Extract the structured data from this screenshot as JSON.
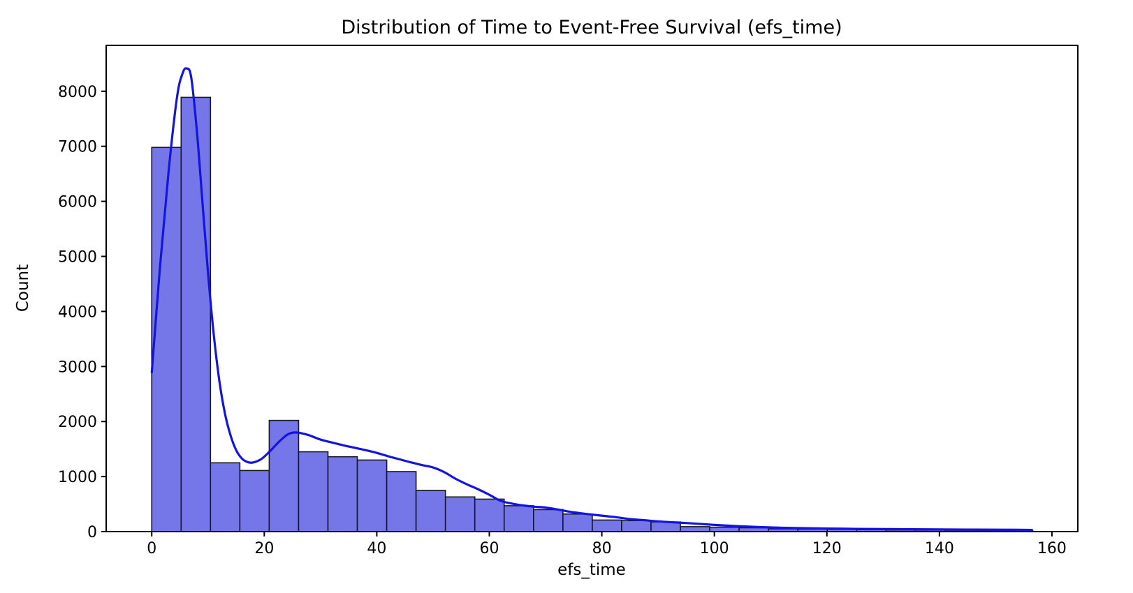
{
  "chart_data": {
    "type": "bar",
    "subtype": "histogram_with_kde",
    "title": "Distribution of Time to Event-Free Survival (efs_time)",
    "xlabel": "efs_time",
    "ylabel": "Count",
    "grid": false,
    "legend": null,
    "xlim": [
      -8.1,
      164.6
    ],
    "ylim": [
      0,
      8834
    ],
    "x_ticks": [
      0,
      20,
      40,
      60,
      80,
      100,
      120,
      140,
      160
    ],
    "y_ticks": [
      0,
      1000,
      2000,
      3000,
      4000,
      5000,
      6000,
      7000,
      8000
    ],
    "bin_start": 0,
    "bin_width": 5.22,
    "n_bins": 30,
    "data_range": [
      0,
      156.6
    ],
    "bar_counts": [
      6980,
      7890,
      1250,
      1110,
      2020,
      1450,
      1360,
      1300,
      1090,
      750,
      630,
      590,
      470,
      400,
      320,
      210,
      200,
      175,
      90,
      80,
      70,
      50,
      45,
      40,
      35,
      30,
      28,
      25,
      22,
      20
    ],
    "kde": {
      "x": [
        0,
        1.5,
        3,
        4.5,
        5.5,
        6.2,
        7,
        8,
        9,
        10,
        11,
        12,
        13,
        14,
        15,
        16,
        17,
        18,
        19.5,
        21,
        22.5,
        24,
        25.2,
        26.5,
        28,
        30,
        32,
        34,
        36,
        38,
        40,
        42,
        44,
        46,
        48,
        50,
        52,
        54,
        56,
        58,
        60,
        62,
        64,
        66,
        68,
        70,
        72.5,
        75,
        77.5,
        80,
        82.5,
        85,
        87.5,
        90,
        93,
        96,
        100,
        104,
        108,
        112,
        116,
        120,
        125,
        130,
        135,
        140,
        145,
        150,
        154,
        156.6
      ],
      "y": [
        2880,
        4850,
        6550,
        7900,
        8330,
        8414,
        8260,
        7300,
        6000,
        4700,
        3600,
        2750,
        2150,
        1750,
        1480,
        1330,
        1265,
        1255,
        1320,
        1460,
        1620,
        1755,
        1800,
        1790,
        1750,
        1672,
        1620,
        1570,
        1525,
        1480,
        1430,
        1370,
        1315,
        1260,
        1210,
        1165,
        1080,
        960,
        860,
        770,
        670,
        560,
        510,
        475,
        452,
        437,
        395,
        350,
        318,
        290,
        262,
        228,
        208,
        186,
        167,
        150,
        122,
        100,
        82,
        70,
        62,
        56,
        50,
        46,
        43,
        40,
        37,
        35,
        33,
        31
      ]
    },
    "colors": {
      "bar_fill": "#7577e9",
      "bar_edge": "#17171f",
      "kde_line": "#1414e0",
      "spine": "#000000",
      "text": "#000000",
      "background": "#ffffff"
    }
  }
}
